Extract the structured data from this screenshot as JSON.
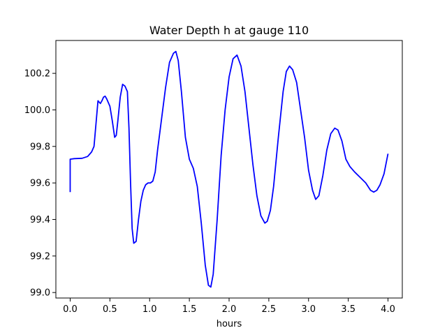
{
  "chart_data": {
    "type": "line",
    "title": "Water Depth h at gauge 110",
    "xlabel": "hours",
    "ylabel": "",
    "xlim": [
      -0.18,
      4.18
    ],
    "ylim": [
      98.97,
      100.38
    ],
    "xticks": [
      0.0,
      0.5,
      1.0,
      1.5,
      2.0,
      2.5,
      3.0,
      3.5,
      4.0
    ],
    "xtick_labels": [
      "0.0",
      "0.5",
      "1.0",
      "1.5",
      "2.0",
      "2.5",
      "3.0",
      "3.5",
      "4.0"
    ],
    "yticks": [
      99.0,
      99.2,
      99.4,
      99.6,
      99.8,
      100.0,
      100.2
    ],
    "ytick_labels": [
      "99.0",
      "99.2",
      "99.4",
      "99.6",
      "99.8",
      "100.0",
      "100.2"
    ],
    "grid": false,
    "legend": "none",
    "series": [
      {
        "color": "#0000ff",
        "x": [
          0.0,
          0.0,
          0.05,
          0.15,
          0.22,
          0.27,
          0.3,
          0.33,
          0.35,
          0.38,
          0.4,
          0.42,
          0.44,
          0.46,
          0.5,
          0.53,
          0.56,
          0.58,
          0.6,
          0.63,
          0.66,
          0.69,
          0.72,
          0.74,
          0.76,
          0.78,
          0.8,
          0.83,
          0.86,
          0.89,
          0.92,
          0.95,
          0.98,
          1.01,
          1.04,
          1.07,
          1.1,
          1.15,
          1.2,
          1.25,
          1.3,
          1.33,
          1.36,
          1.4,
          1.45,
          1.5,
          1.55,
          1.6,
          1.65,
          1.7,
          1.74,
          1.77,
          1.8,
          1.85,
          1.9,
          1.95,
          2.0,
          2.05,
          2.1,
          2.15,
          2.2,
          2.25,
          2.3,
          2.35,
          2.4,
          2.45,
          2.48,
          2.52,
          2.56,
          2.62,
          2.68,
          2.72,
          2.76,
          2.8,
          2.85,
          2.9,
          2.95,
          3.0,
          3.05,
          3.09,
          3.13,
          3.18,
          3.23,
          3.28,
          3.33,
          3.37,
          3.42,
          3.47,
          3.52,
          3.58,
          3.65,
          3.72,
          3.78,
          3.82,
          3.86,
          3.9,
          3.95,
          4.0
        ],
        "y": [
          99.55,
          99.73,
          99.733,
          99.735,
          99.745,
          99.77,
          99.8,
          99.95,
          100.05,
          100.035,
          100.05,
          100.07,
          100.075,
          100.06,
          100.02,
          99.94,
          99.85,
          99.86,
          99.94,
          100.07,
          100.14,
          100.13,
          100.1,
          99.9,
          99.6,
          99.35,
          99.27,
          99.28,
          99.4,
          99.5,
          99.56,
          99.59,
          99.6,
          99.6,
          99.61,
          99.66,
          99.78,
          99.95,
          100.12,
          100.26,
          100.31,
          100.32,
          100.27,
          100.1,
          99.85,
          99.73,
          99.68,
          99.58,
          99.38,
          99.15,
          99.04,
          99.03,
          99.1,
          99.4,
          99.75,
          100.0,
          100.18,
          100.28,
          100.3,
          100.24,
          100.1,
          99.9,
          99.7,
          99.53,
          99.42,
          99.38,
          99.39,
          99.45,
          99.58,
          99.85,
          100.1,
          100.21,
          100.24,
          100.22,
          100.15,
          100.0,
          99.85,
          99.67,
          99.56,
          99.51,
          99.53,
          99.64,
          99.78,
          99.87,
          99.9,
          99.89,
          99.83,
          99.73,
          99.69,
          99.66,
          99.63,
          99.6,
          99.56,
          99.55,
          99.56,
          99.59,
          99.65,
          99.76
        ]
      }
    ]
  }
}
